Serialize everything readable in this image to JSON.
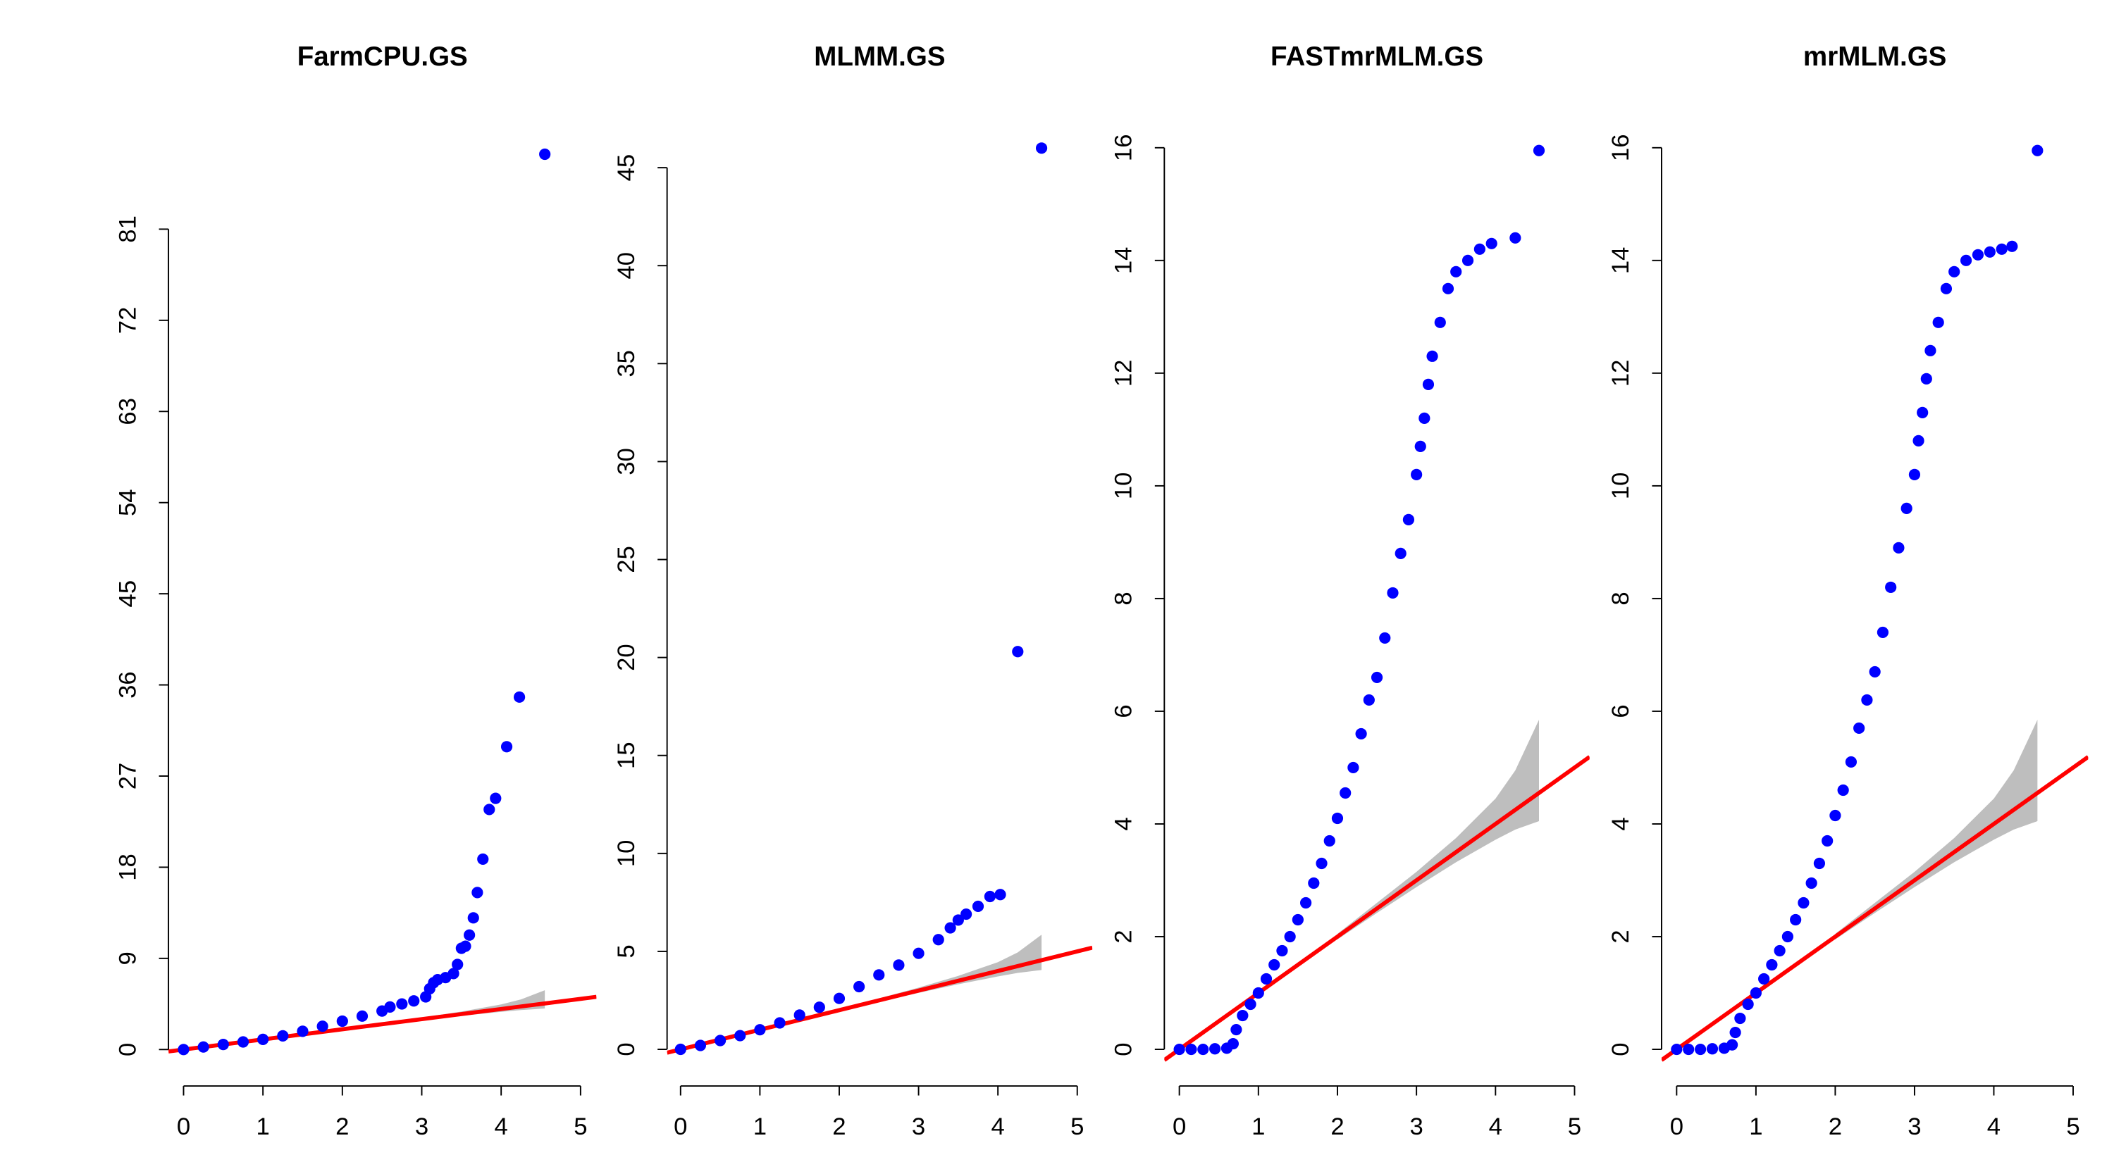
{
  "chart_data": [
    {
      "type": "scatter",
      "title": "FarmCPU.GS",
      "color": "#0000ff",
      "line_color": "#ff0000",
      "x": [
        0,
        0.25,
        0.5,
        0.75,
        1,
        1.25,
        1.5,
        1.75,
        2,
        2.25,
        2.5,
        2.6,
        2.75,
        2.9,
        3.05,
        3.1,
        3.15,
        3.2,
        3.3,
        3.4,
        3.45,
        3.5,
        3.55,
        3.6,
        3.65,
        3.7,
        3.77,
        3.85,
        3.93,
        4.07,
        4.23,
        4.55
      ],
      "y": [
        0,
        0.25,
        0.5,
        0.75,
        1,
        1.35,
        1.8,
        2.3,
        2.8,
        3.3,
        3.8,
        4.2,
        4.5,
        4.8,
        5.2,
        6,
        6.6,
        6.9,
        7.1,
        7.5,
        8.4,
        10,
        10.2,
        11.3,
        13,
        15.5,
        18.8,
        23.7,
        24.8,
        29.9,
        34.8,
        88.4
      ],
      "band": {
        "color": "#bebebe",
        "x": [
          3,
          3.5,
          4,
          4.25,
          4.55
        ],
        "lower": [
          2.88,
          3.32,
          3.72,
          3.9,
          4.05
        ],
        "upper": [
          3.15,
          3.75,
          4.45,
          4.95,
          5.85
        ]
      },
      "xlim": [
        -0.19,
        5.2
      ],
      "ylim": [
        -3.6,
        92.1
      ],
      "xticks": [
        0,
        1,
        2,
        3,
        4,
        5
      ],
      "yticks": [
        0,
        9,
        18,
        27,
        36,
        45,
        54,
        63,
        72,
        81
      ]
    },
    {
      "type": "scatter",
      "title": "MLMM.GS",
      "color": "#0000ff",
      "line_color": "#ff0000",
      "x": [
        0,
        0.25,
        0.5,
        0.75,
        1,
        1.25,
        1.5,
        1.75,
        2,
        2.25,
        2.5,
        2.75,
        3,
        3.25,
        3.4,
        3.5,
        3.6,
        3.75,
        3.9,
        4.03,
        4.25,
        4.55
      ],
      "y": [
        0,
        0.2,
        0.45,
        0.7,
        1.0,
        1.35,
        1.75,
        2.15,
        2.6,
        3.2,
        3.8,
        4.3,
        4.9,
        5.6,
        6.2,
        6.6,
        6.9,
        7.3,
        7.8,
        7.9,
        20.3,
        46.0
      ],
      "band": {
        "color": "#bebebe",
        "x": [
          2.5,
          3,
          3.5,
          4,
          4.25,
          4.55
        ],
        "lower": [
          2.42,
          2.88,
          3.32,
          3.72,
          3.9,
          4.05
        ],
        "upper": [
          2.6,
          3.15,
          3.75,
          4.45,
          4.95,
          5.85
        ]
      },
      "xlim": [
        -0.17,
        5.19
      ],
      "ylim": [
        -1.87,
        47.6
      ],
      "xticks": [
        0,
        1,
        2,
        3,
        4,
        5
      ],
      "yticks": [
        0,
        5,
        10,
        15,
        20,
        25,
        30,
        35,
        40,
        45
      ]
    },
    {
      "type": "scatter",
      "title": "FASTmrMLM.GS",
      "color": "#0000ff",
      "line_color": "#ff0000",
      "x": [
        0,
        0.15,
        0.3,
        0.45,
        0.6,
        0.68,
        0.72,
        0.8,
        0.9,
        1,
        1.1,
        1.2,
        1.3,
        1.4,
        1.5,
        1.6,
        1.7,
        1.8,
        1.9,
        2,
        2.1,
        2.2,
        2.3,
        2.4,
        2.5,
        2.6,
        2.7,
        2.8,
        2.9,
        3,
        3.05,
        3.1,
        3.15,
        3.2,
        3.3,
        3.4,
        3.5,
        3.65,
        3.8,
        3.95,
        4.25,
        4.55
      ],
      "y": [
        0,
        0,
        0,
        0.01,
        0.02,
        0.1,
        0.35,
        0.6,
        0.8,
        1.0,
        1.25,
        1.5,
        1.75,
        2.0,
        2.3,
        2.6,
        2.95,
        3.3,
        3.7,
        4.1,
        4.55,
        5.0,
        5.6,
        6.2,
        6.6,
        7.3,
        8.1,
        8.8,
        9.4,
        10.2,
        10.7,
        11.2,
        11.8,
        12.3,
        12.9,
        13.5,
        13.8,
        14.0,
        14.2,
        14.3,
        14.4,
        15.95
      ],
      "band": {
        "color": "#bebebe",
        "x": [
          2,
          2.5,
          3,
          3.5,
          4,
          4.25,
          4.55
        ],
        "lower": [
          1.95,
          2.42,
          2.88,
          3.32,
          3.72,
          3.9,
          4.05
        ],
        "upper": [
          2.05,
          2.6,
          3.15,
          3.75,
          4.45,
          4.95,
          5.85
        ]
      },
      "xlim": [
        -0.19,
        5.19
      ],
      "ylim": [
        -0.65,
        16.55
      ],
      "xticks": [
        0,
        1,
        2,
        3,
        4,
        5
      ],
      "yticks": [
        0,
        2,
        4,
        6,
        8,
        10,
        12,
        14,
        16
      ]
    },
    {
      "type": "scatter",
      "title": "mrMLM.GS",
      "color": "#0000ff",
      "line_color": "#ff0000",
      "x": [
        0,
        0.15,
        0.3,
        0.45,
        0.6,
        0.7,
        0.74,
        0.8,
        0.9,
        1,
        1.1,
        1.2,
        1.3,
        1.4,
        1.5,
        1.6,
        1.7,
        1.8,
        1.9,
        2,
        2.1,
        2.2,
        2.3,
        2.4,
        2.5,
        2.6,
        2.7,
        2.8,
        2.9,
        3,
        3.05,
        3.1,
        3.15,
        3.2,
        3.3,
        3.4,
        3.5,
        3.65,
        3.8,
        3.95,
        4.1,
        4.23,
        4.55
      ],
      "y": [
        0,
        0,
        0,
        0.01,
        0.02,
        0.08,
        0.3,
        0.55,
        0.8,
        1.0,
        1.25,
        1.5,
        1.75,
        2.0,
        2.3,
        2.6,
        2.95,
        3.3,
        3.7,
        4.15,
        4.6,
        5.1,
        5.7,
        6.2,
        6.7,
        7.4,
        8.2,
        8.9,
        9.6,
        10.2,
        10.8,
        11.3,
        11.9,
        12.4,
        12.9,
        13.5,
        13.8,
        14.0,
        14.1,
        14.15,
        14.2,
        14.25,
        15.95
      ],
      "band": {
        "color": "#bebebe",
        "x": [
          2,
          2.5,
          3,
          3.5,
          4,
          4.25,
          4.55
        ],
        "lower": [
          1.95,
          2.42,
          2.88,
          3.32,
          3.72,
          3.9,
          4.05
        ],
        "upper": [
          2.05,
          2.6,
          3.15,
          3.75,
          4.45,
          4.95,
          5.85
        ]
      },
      "xlim": [
        -0.19,
        5.19
      ],
      "ylim": [
        -0.65,
        16.55
      ],
      "xticks": [
        0,
        1,
        2,
        3,
        4,
        5
      ],
      "yticks": [
        0,
        2,
        4,
        6,
        8,
        10,
        12,
        14,
        16
      ]
    }
  ]
}
